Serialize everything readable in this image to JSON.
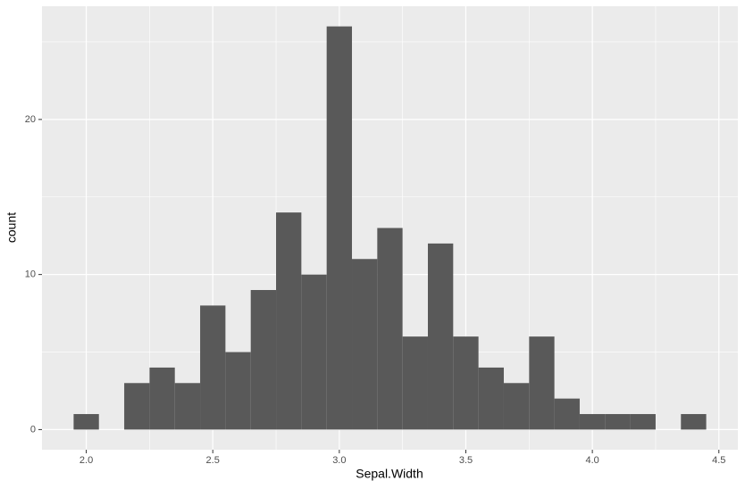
{
  "chart_data": {
    "type": "histogram",
    "x_label": "Sepal.Width",
    "y_label": "count",
    "bins": [
      1.95,
      2.05,
      2.15,
      2.25,
      2.35,
      2.45,
      2.55,
      2.65,
      2.75,
      2.85,
      2.95,
      3.05,
      3.15,
      3.25,
      3.35,
      3.45,
      3.55,
      3.65,
      3.75,
      3.85,
      3.95,
      4.05,
      4.15,
      4.25,
      4.35,
      4.45
    ],
    "values": [
      1,
      0,
      3,
      4,
      3,
      8,
      5,
      9,
      14,
      10,
      26,
      11,
      13,
      6,
      12,
      6,
      4,
      3,
      6,
      2,
      1,
      1,
      1,
      0,
      1
    ],
    "color": "#595959",
    "xlim": [
      1.825,
      4.575
    ],
    "ylim": [
      -1.3,
      27.3
    ],
    "xticks": [
      {
        "value": 2,
        "label": "2.0"
      },
      2.5,
      {
        "value": 3,
        "label": "3.0"
      },
      3.5,
      {
        "value": 4,
        "label": "4.0"
      },
      4.5
    ],
    "yticks": [
      0,
      10,
      20
    ],
    "minor_xticks": [
      2.25,
      2.75,
      3.25,
      3.75,
      4.25
    ],
    "minor_yticks": [
      5,
      15,
      25
    ],
    "grid": true
  }
}
